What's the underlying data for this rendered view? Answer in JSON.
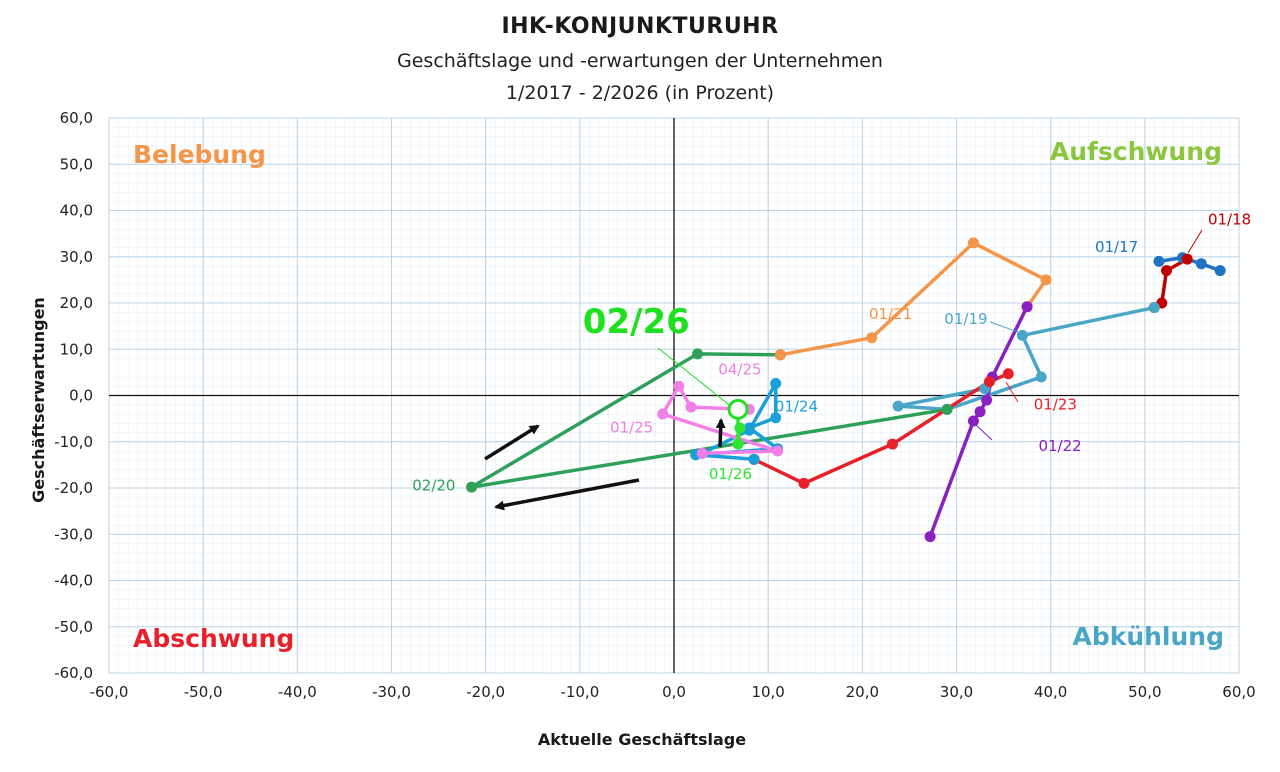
{
  "chart_data": {
    "type": "line",
    "title": "IHK-KONJUNKTURUHR",
    "subtitle_lines": [
      "Geschäftslage und -erwartungen der Unternehmen",
      "1/2017 - 2/2026 (in Prozent)"
    ],
    "xlabel": "Aktuelle Geschäftslage",
    "ylabel": "Geschäftserwartungen",
    "xlim": [
      -60,
      60
    ],
    "ylim": [
      -60,
      60
    ],
    "x_ticks": [
      "-60,0",
      "-50,0",
      "-40,0",
      "-30,0",
      "-20,0",
      "-10,0",
      "0,0",
      "10,0",
      "20,0",
      "30,0",
      "40,0",
      "50,0",
      "60,0"
    ],
    "y_ticks": [
      "60,0",
      "50,0",
      "40,0",
      "30,0",
      "20,0",
      "10,0",
      "0,0",
      "-10,0",
      "-20,0",
      "-30,0",
      "-40,0",
      "-50,0",
      "-60,0"
    ],
    "grid": true,
    "quadrants": [
      {
        "label": "Belebung",
        "position": "top-left",
        "color": "#f5954a"
      },
      {
        "label": "Aufschwung",
        "position": "top-right",
        "color": "#8cc63f"
      },
      {
        "label": "Abschwung",
        "position": "bottom-left",
        "color": "#e8202a"
      },
      {
        "label": "Abkühlung",
        "position": "bottom-right",
        "color": "#4aa6c7"
      }
    ],
    "series": [
      {
        "color": "#1f73c0",
        "points": [
          [
            51.5,
            29
          ],
          [
            54,
            29.8
          ],
          [
            56,
            28.5
          ],
          [
            58,
            27
          ]
        ]
      },
      {
        "color": "#c00000",
        "points": [
          [
            54.5,
            29.5
          ],
          [
            52.3,
            27
          ],
          [
            51.8,
            20
          ],
          [
            51,
            19
          ]
        ]
      },
      {
        "color": "#4aa6c7",
        "points": [
          [
            51,
            19
          ],
          [
            37,
            13
          ],
          [
            39,
            4
          ],
          [
            29,
            -3
          ],
          [
            23.8,
            -2.3
          ],
          [
            33,
            1.5
          ]
        ]
      },
      {
        "color": "#2ea05a",
        "points": [
          [
            29,
            -3
          ],
          [
            -21.5,
            -19.8
          ],
          [
            2.5,
            9
          ],
          [
            11.3,
            8.8
          ]
        ]
      },
      {
        "color": "#f5954a",
        "points": [
          [
            11.3,
            8.8
          ],
          [
            21,
            12.5
          ],
          [
            31.8,
            33
          ],
          [
            39.5,
            25
          ],
          [
            37.5,
            19.2
          ]
        ]
      },
      {
        "color": "#8a1fc2",
        "points": [
          [
            37.5,
            19.2
          ],
          [
            33.8,
            4
          ],
          [
            33.2,
            -1
          ],
          [
            32.5,
            -3.5
          ],
          [
            31.8,
            -5.5
          ],
          [
            27.2,
            -30.5
          ]
        ]
      },
      {
        "color": "#e8202a",
        "points": [
          [
            35.5,
            4.7
          ],
          [
            33.5,
            3
          ],
          [
            23.2,
            -10.5
          ],
          [
            13.8,
            -19
          ],
          [
            8.5,
            -13.8
          ]
        ]
      },
      {
        "color": "#1aa0d8",
        "points": [
          [
            8.5,
            -13.8
          ],
          [
            2.3,
            -12.8
          ],
          [
            11,
            -11.5
          ],
          [
            8,
            -7
          ],
          [
            10.8,
            -4.8
          ],
          [
            10.8,
            2.6
          ],
          [
            8,
            -7.5
          ],
          [
            3,
            -12.5
          ]
        ]
      },
      {
        "color": "#f27ee8",
        "points": [
          [
            3,
            -12.5
          ],
          [
            11,
            -12
          ],
          [
            -1.2,
            -4
          ],
          [
            0.5,
            2
          ],
          [
            1.8,
            -2.5
          ],
          [
            8,
            -3
          ]
        ]
      },
      {
        "color": "#2ee632",
        "points": [
          [
            7,
            -7
          ],
          [
            6.8,
            -10.5
          ],
          [
            6.8,
            -3
          ]
        ]
      }
    ],
    "current_point": {
      "x": 6.8,
      "y": -3,
      "color": "#1fe01f"
    },
    "annotations": [
      {
        "text": "01/17",
        "x": 47,
        "y": 31,
        "color": "#1f73c0"
      },
      {
        "text": "01/18",
        "x": 59,
        "y": 37,
        "color": "#c00000"
      },
      {
        "text": "01/19",
        "x": 31,
        "y": 15.5,
        "color": "#4aa6c7"
      },
      {
        "text": "01/21",
        "x": 23,
        "y": 16.5,
        "color": "#f5954a"
      },
      {
        "text": "01/22",
        "x": 41,
        "y": -12,
        "color": "#8a1fc2"
      },
      {
        "text": "01/23",
        "x": 40.5,
        "y": -3,
        "color": "#e8202a"
      },
      {
        "text": "01/24",
        "x": 13,
        "y": -3.5,
        "color": "#1aa0d8"
      },
      {
        "text": "04/25",
        "x": 7,
        "y": 4.5,
        "color": "#f27ee8"
      },
      {
        "text": "01/25",
        "x": -4.5,
        "y": -8,
        "color": "#f27ee8"
      },
      {
        "text": "01/26",
        "x": 6,
        "y": -18,
        "color": "#2ee632"
      },
      {
        "text": "02/20",
        "x": -25.5,
        "y": -20.5,
        "color": "#2ea05a"
      },
      {
        "text": "02/26",
        "x": -4,
        "y": 13.5,
        "color": "#1fe01f"
      }
    ]
  }
}
